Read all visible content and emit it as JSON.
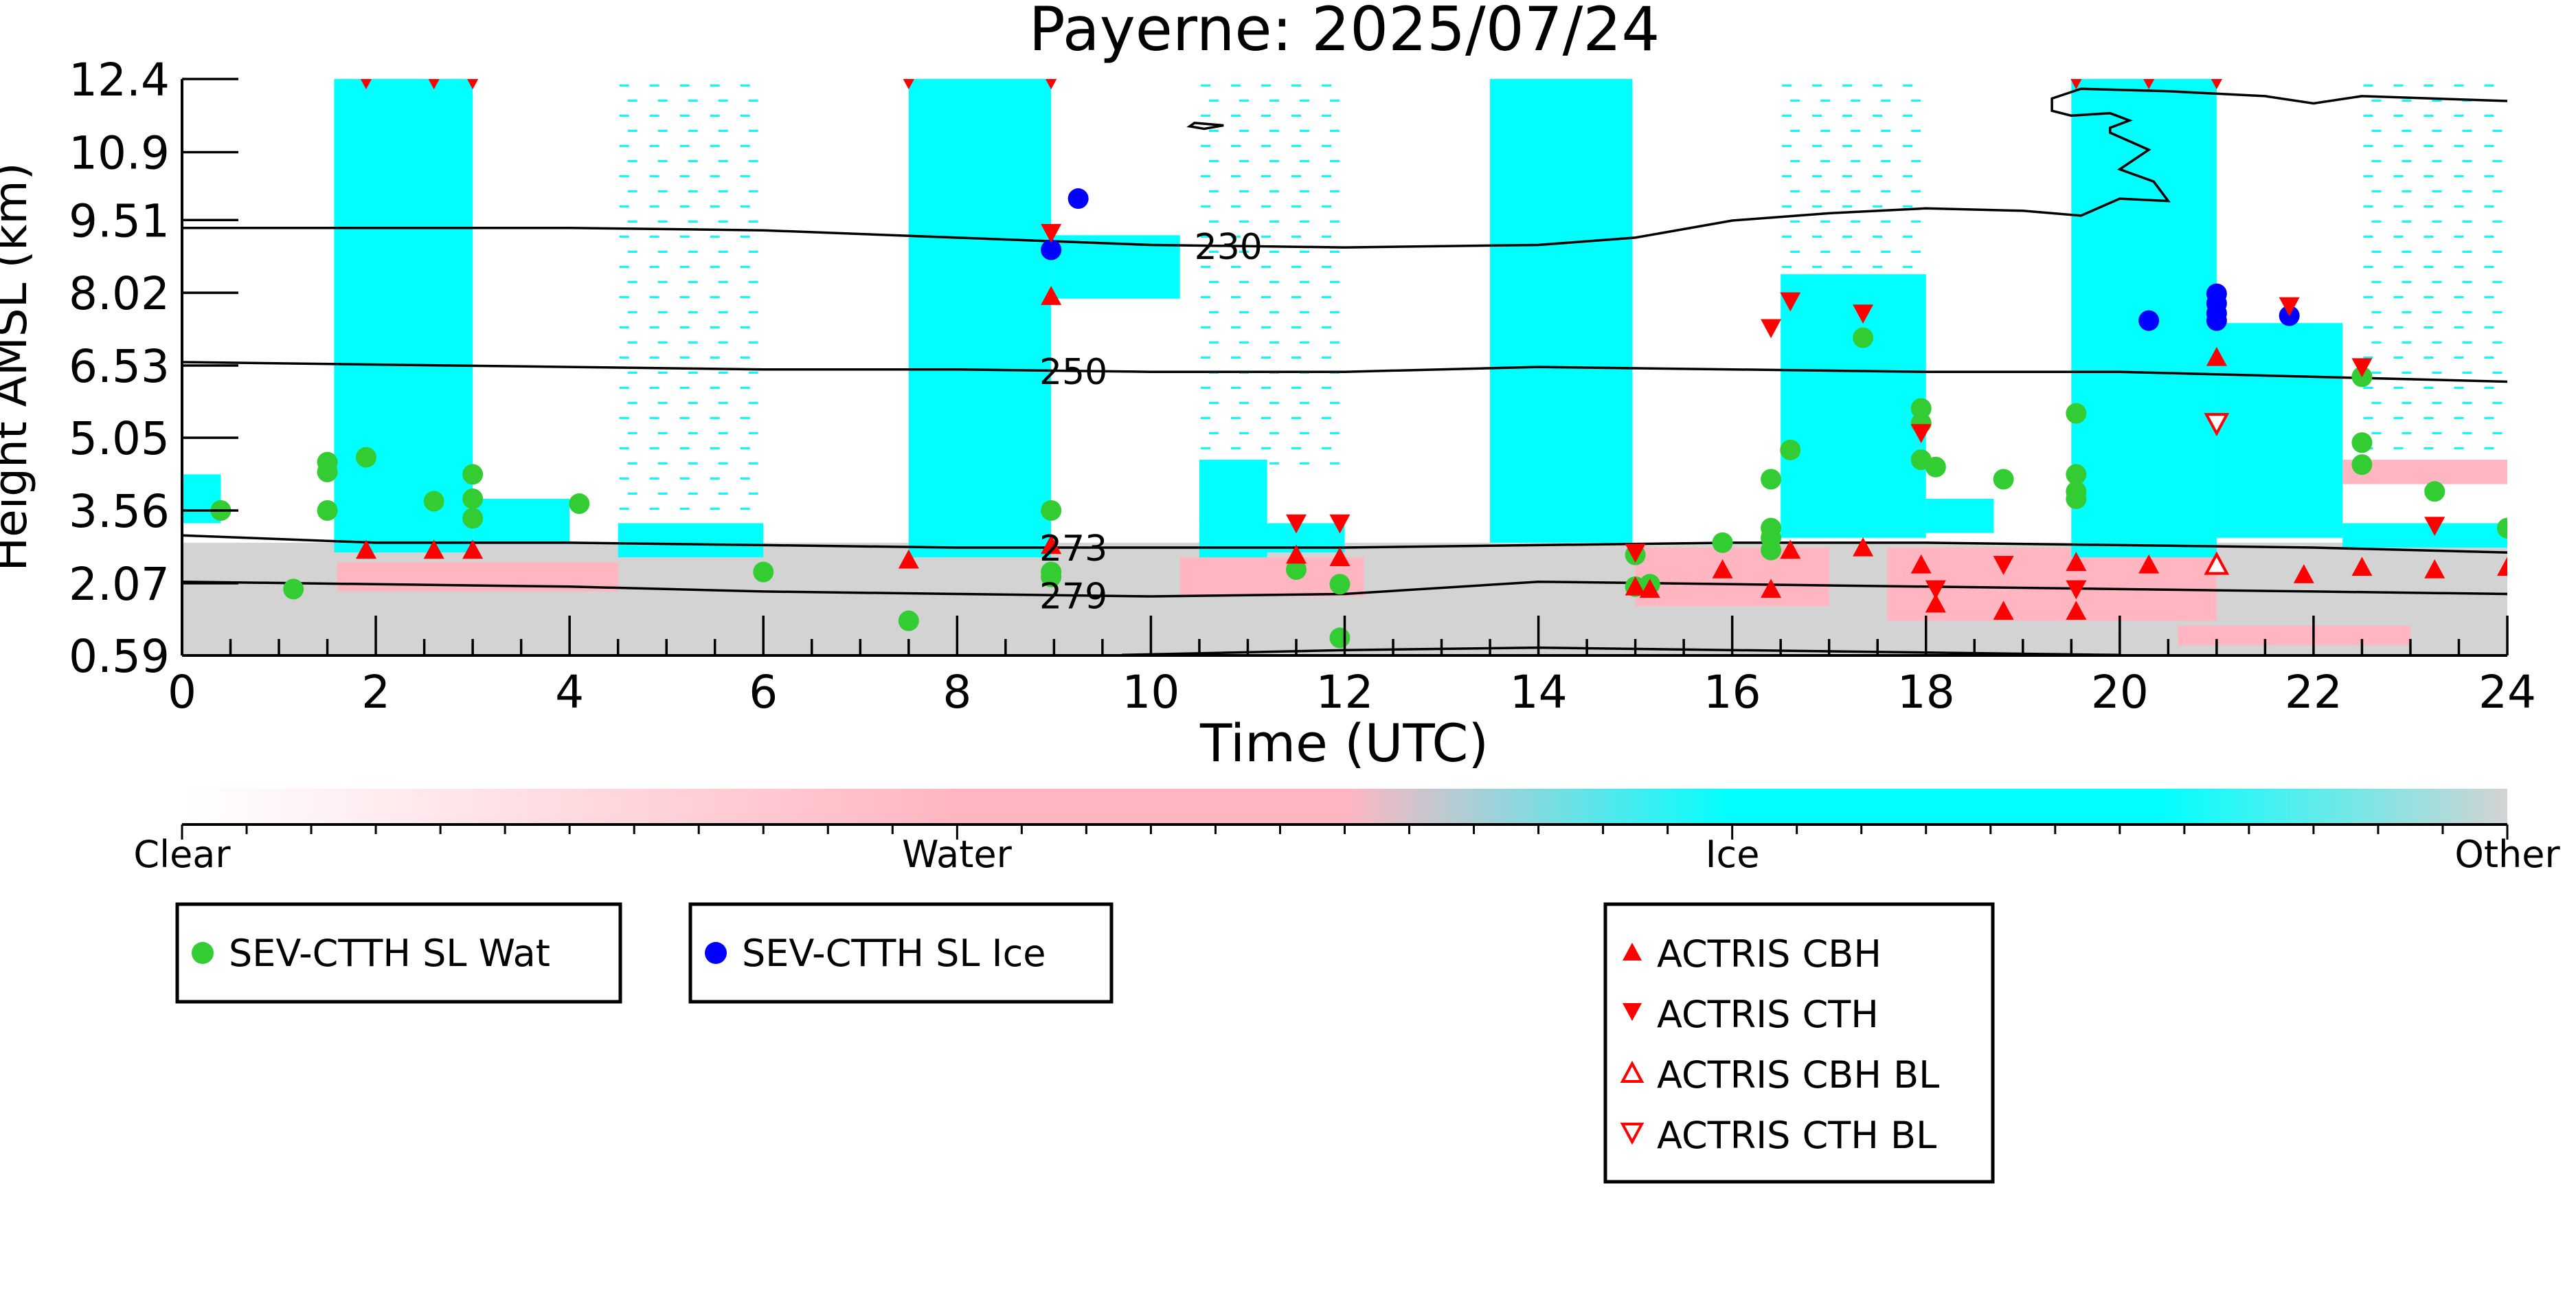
{
  "colors": {
    "clear": "#ffffff",
    "water": "#ffb6c1",
    "ice": "#00ffff",
    "other": "#d3d3d3",
    "marker_red": "#ff0000",
    "marker_green": "#33cc33",
    "marker_blue": "#0000ff",
    "contour": "#000000"
  },
  "chart_data": {
    "type": "heatmap",
    "title": "Payerne: 2025/07/24",
    "xlabel": "Time (UTC)",
    "ylabel": "Height AMSL (km)",
    "xlim": [
      0,
      24
    ],
    "ylim": [
      0.59,
      12.4
    ],
    "x_ticks": [
      "0",
      "2",
      "4",
      "6",
      "8",
      "10",
      "12",
      "14",
      "16",
      "18",
      "20",
      "22",
      "24"
    ],
    "y_ticks": [
      "0.59",
      "2.07",
      "3.56",
      "5.05",
      "6.53",
      "8.02",
      "9.51",
      "10.9",
      "12.4"
    ],
    "colorbar": {
      "categories": [
        "Clear",
        "Water",
        "Ice",
        "Other"
      ]
    },
    "classification": {
      "other_layer": [
        {
          "x0": 0,
          "x1": 24,
          "y0": 0.59,
          "y1": 2.9
        }
      ],
      "water_patches": [
        {
          "x0": 1.6,
          "x1": 4.5,
          "y0": 1.9,
          "y1": 2.5
        },
        {
          "x0": 10.3,
          "x1": 12.2,
          "y0": 1.8,
          "y1": 2.6
        },
        {
          "x0": 15.0,
          "x1": 17.0,
          "y0": 1.6,
          "y1": 2.8
        },
        {
          "x0": 17.6,
          "x1": 21.0,
          "y0": 1.3,
          "y1": 2.8
        },
        {
          "x0": 20.6,
          "x1": 23.0,
          "y0": 0.8,
          "y1": 1.2
        },
        {
          "x0": 22.0,
          "x1": 24.0,
          "y0": 4.1,
          "y1": 4.6
        }
      ],
      "ice_columns": [
        {
          "x0": 1.57,
          "x1": 3.0,
          "y0": 2.7,
          "y1": 12.4
        },
        {
          "x0": 7.5,
          "x1": 8.97,
          "y0": 2.6,
          "y1": 12.4
        },
        {
          "x0": 13.5,
          "x1": 14.97,
          "y0": 2.9,
          "y1": 12.4
        },
        {
          "x0": 19.5,
          "x1": 21.0,
          "y0": 2.6,
          "y1": 12.4
        }
      ],
      "ice_regions": [
        {
          "x0": 3.0,
          "x1": 4.0,
          "y0": 2.9,
          "y1": 3.8
        },
        {
          "x0": 4.5,
          "x1": 6.0,
          "y0": 2.6,
          "y1": 3.3
        },
        {
          "x0": 8.97,
          "x1": 10.3,
          "y0": 7.9,
          "y1": 9.2
        },
        {
          "x0": 10.5,
          "x1": 11.2,
          "y0": 2.6,
          "y1": 4.6
        },
        {
          "x0": 10.5,
          "x1": 12.0,
          "y0": 2.7,
          "y1": 3.3
        },
        {
          "x0": 16.5,
          "x1": 18.0,
          "y0": 3.0,
          "y1": 8.4
        },
        {
          "x0": 18.0,
          "x1": 18.7,
          "y0": 3.1,
          "y1": 3.8
        },
        {
          "x0": 21.0,
          "x1": 22.3,
          "y0": 3.0,
          "y1": 7.4
        },
        {
          "x0": 22.3,
          "x1": 24.0,
          "y0": 2.8,
          "y1": 3.3
        },
        {
          "x0": 0.0,
          "x1": 0.4,
          "y0": 3.3,
          "y1": 4.3
        }
      ],
      "sparse_ice_bands": [
        {
          "x0": 4.5,
          "x1": 6.0,
          "y0": 3.5,
          "y1": 12.4
        },
        {
          "x0": 10.5,
          "x1": 12.0,
          "y0": 4.5,
          "y1": 12.4
        },
        {
          "x0": 16.5,
          "x1": 18.0,
          "y0": 8.4,
          "y1": 12.4
        },
        {
          "x0": 22.5,
          "x1": 24.0,
          "y0": 4.6,
          "y1": 12.4
        }
      ]
    },
    "contours": [
      {
        "label": "230",
        "label_at": 10.8,
        "points": [
          [
            0,
            9.35
          ],
          [
            2,
            9.35
          ],
          [
            4,
            9.35
          ],
          [
            6,
            9.3
          ],
          [
            8,
            9.15
          ],
          [
            10,
            9.0
          ],
          [
            12,
            8.95
          ],
          [
            14,
            9.0
          ],
          [
            15,
            9.15
          ],
          [
            16,
            9.5
          ],
          [
            17,
            9.65
          ],
          [
            18,
            9.75
          ],
          [
            19,
            9.7
          ],
          [
            19.6,
            9.6
          ],
          [
            20.0,
            9.95
          ],
          [
            20.5,
            9.9
          ],
          [
            20.35,
            10.3
          ],
          [
            20.0,
            10.55
          ],
          [
            20.3,
            10.95
          ],
          [
            19.9,
            11.3
          ],
          [
            19.9,
            11.4
          ],
          [
            20.1,
            11.55
          ],
          [
            19.9,
            11.7
          ],
          [
            19.5,
            11.65
          ],
          [
            19.3,
            11.75
          ],
          [
            19.3,
            12.0
          ],
          [
            19.6,
            12.2
          ],
          [
            20.5,
            12.15
          ],
          [
            21.5,
            12.05
          ],
          [
            22.0,
            11.9
          ],
          [
            22.5,
            12.05
          ],
          [
            24.0,
            11.95
          ]
        ]
      },
      {
        "label": "250",
        "label_at": 9.2,
        "points": [
          [
            0,
            6.6
          ],
          [
            2,
            6.55
          ],
          [
            4,
            6.5
          ],
          [
            6,
            6.45
          ],
          [
            8,
            6.45
          ],
          [
            10,
            6.4
          ],
          [
            12,
            6.4
          ],
          [
            14,
            6.5
          ],
          [
            16,
            6.45
          ],
          [
            18,
            6.4
          ],
          [
            20,
            6.4
          ],
          [
            22,
            6.3
          ],
          [
            24,
            6.2
          ]
        ]
      },
      {
        "label": "273",
        "label_at": 9.2,
        "points": [
          [
            0,
            3.05
          ],
          [
            2,
            2.9
          ],
          [
            4,
            2.9
          ],
          [
            6,
            2.85
          ],
          [
            8,
            2.8
          ],
          [
            10,
            2.8
          ],
          [
            12,
            2.8
          ],
          [
            14,
            2.85
          ],
          [
            16,
            2.9
          ],
          [
            18,
            2.9
          ],
          [
            20,
            2.85
          ],
          [
            22,
            2.8
          ],
          [
            24,
            2.7
          ]
        ]
      },
      {
        "label": "279",
        "label_at": 9.2,
        "points": [
          [
            0,
            2.1
          ],
          [
            2,
            2.05
          ],
          [
            4,
            2.0
          ],
          [
            6,
            1.9
          ],
          [
            8,
            1.85
          ],
          [
            10,
            1.8
          ],
          [
            12,
            1.85
          ],
          [
            14,
            2.1
          ],
          [
            16,
            2.05
          ],
          [
            18,
            2.0
          ],
          [
            20,
            1.95
          ],
          [
            22,
            1.9
          ],
          [
            24,
            1.85
          ]
        ]
      },
      {
        "label": "",
        "label_at": null,
        "points": [
          [
            9.7,
            0.6
          ],
          [
            12,
            0.7
          ],
          [
            14,
            0.75
          ],
          [
            16,
            0.7
          ],
          [
            18,
            0.65
          ],
          [
            20,
            0.6
          ]
        ]
      },
      {
        "label": "",
        "label_at": null,
        "closed": true,
        "points": [
          [
            10.45,
            11.5
          ],
          [
            10.75,
            11.45
          ],
          [
            10.55,
            11.38
          ],
          [
            10.4,
            11.43
          ]
        ]
      }
    ],
    "series": [
      {
        "name": "SEV-CTTH SL Wat",
        "marker": "circle",
        "color": "#33cc33",
        "points": [
          [
            0.4,
            3.56
          ],
          [
            1.15,
            1.95
          ],
          [
            1.5,
            4.55
          ],
          [
            1.5,
            4.35
          ],
          [
            1.5,
            3.56
          ],
          [
            1.9,
            4.65
          ],
          [
            2.6,
            3.75
          ],
          [
            3.0,
            4.3
          ],
          [
            3.0,
            3.8
          ],
          [
            3.0,
            3.4
          ],
          [
            4.1,
            3.7
          ],
          [
            6.0,
            2.3
          ],
          [
            7.5,
            1.3
          ],
          [
            8.97,
            3.56
          ],
          [
            8.97,
            2.3
          ],
          [
            8.97,
            2.2
          ],
          [
            11.5,
            2.35
          ],
          [
            11.95,
            2.05
          ],
          [
            11.95,
            0.95
          ],
          [
            15.0,
            2.65
          ],
          [
            15.0,
            2.0
          ],
          [
            15.15,
            2.05
          ],
          [
            15.9,
            2.9
          ],
          [
            16.4,
            4.2
          ],
          [
            16.4,
            3.2
          ],
          [
            16.4,
            3.0
          ],
          [
            16.4,
            2.75
          ],
          [
            16.6,
            4.8
          ],
          [
            17.35,
            7.1
          ],
          [
            17.95,
            5.65
          ],
          [
            17.95,
            5.35
          ],
          [
            17.95,
            4.6
          ],
          [
            18.1,
            4.45
          ],
          [
            18.8,
            4.2
          ],
          [
            19.55,
            5.55
          ],
          [
            19.55,
            4.3
          ],
          [
            19.55,
            3.95
          ],
          [
            19.55,
            3.8
          ],
          [
            22.5,
            6.3
          ],
          [
            22.5,
            4.95
          ],
          [
            22.5,
            4.5
          ],
          [
            23.25,
            3.95
          ],
          [
            24.0,
            3.2
          ]
        ]
      },
      {
        "name": "SEV-CTTH SL Ice",
        "marker": "circle",
        "color": "#0000ff",
        "points": [
          [
            9.25,
            9.95
          ],
          [
            8.97,
            8.9
          ],
          [
            20.3,
            7.45
          ],
          [
            21.0,
            8.0
          ],
          [
            21.0,
            7.8
          ],
          [
            21.0,
            7.6
          ],
          [
            21.0,
            7.45
          ],
          [
            21.75,
            7.55
          ]
        ]
      },
      {
        "name": "ACTRIS CBH",
        "marker": "triangle-up",
        "color": "#ff0000",
        "points": [
          [
            1.9,
            2.75
          ],
          [
            2.6,
            2.75
          ],
          [
            3.0,
            2.75
          ],
          [
            7.5,
            2.55
          ],
          [
            8.97,
            7.95
          ],
          [
            8.97,
            2.85
          ],
          [
            11.5,
            2.65
          ],
          [
            11.95,
            2.6
          ],
          [
            15.0,
            2.0
          ],
          [
            15.15,
            1.95
          ],
          [
            15.9,
            2.35
          ],
          [
            16.4,
            1.95
          ],
          [
            16.6,
            2.75
          ],
          [
            17.35,
            2.8
          ],
          [
            17.95,
            2.45
          ],
          [
            18.1,
            1.65
          ],
          [
            18.8,
            1.5
          ],
          [
            19.55,
            2.5
          ],
          [
            19.55,
            1.5
          ],
          [
            20.3,
            2.45
          ],
          [
            21.0,
            6.7
          ],
          [
            21.9,
            2.25
          ],
          [
            22.5,
            2.4
          ],
          [
            23.25,
            2.35
          ],
          [
            24.0,
            2.4
          ]
        ]
      },
      {
        "name": "ACTRIS CTH",
        "marker": "triangle-down",
        "color": "#ff0000",
        "points": [
          [
            1.9,
            12.4
          ],
          [
            2.6,
            12.4
          ],
          [
            3.0,
            12.4
          ],
          [
            7.5,
            12.4
          ],
          [
            8.97,
            12.4
          ],
          [
            8.97,
            9.25
          ],
          [
            11.5,
            3.3
          ],
          [
            11.95,
            3.3
          ],
          [
            15.0,
            2.7
          ],
          [
            16.4,
            7.3
          ],
          [
            16.6,
            7.85
          ],
          [
            17.35,
            7.6
          ],
          [
            17.95,
            5.15
          ],
          [
            18.1,
            1.95
          ],
          [
            18.8,
            2.45
          ],
          [
            19.55,
            1.95
          ],
          [
            19.55,
            12.4
          ],
          [
            20.3,
            12.4
          ],
          [
            21.0,
            12.4
          ],
          [
            21.75,
            7.75
          ],
          [
            22.5,
            6.5
          ],
          [
            23.25,
            3.25
          ]
        ]
      },
      {
        "name": "ACTRIS CBH BL",
        "marker": "triangle-up-open",
        "color": "#ff0000",
        "points": [
          [
            21.0,
            2.45
          ]
        ]
      },
      {
        "name": "ACTRIS CTH BL",
        "marker": "triangle-down-open",
        "color": "#ff0000",
        "points": [
          [
            21.0,
            5.35
          ]
        ]
      }
    ]
  }
}
